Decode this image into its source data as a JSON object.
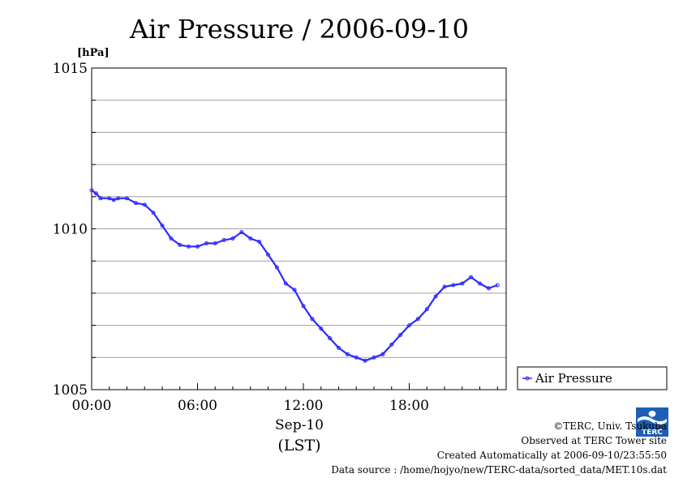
{
  "chart_data": {
    "type": "line",
    "title": "Air Pressure / 2006-09-10",
    "ylabel": "[hPa]",
    "ylim": [
      1005,
      1015
    ],
    "yticks": [
      1005,
      1010,
      1015
    ],
    "y_gridlines": [
      1006,
      1007,
      1008,
      1009,
      1010,
      1011,
      1012,
      1013,
      1014
    ],
    "xlim": [
      0,
      23
    ],
    "xticks": [
      0,
      6,
      12,
      18
    ],
    "xtick_labels": [
      "00:00",
      "06:00",
      "12:00",
      "18:00"
    ],
    "xlabel_date": "Sep-10",
    "xlabel_tz": "(LST)",
    "legend_placement": "right",
    "series": [
      {
        "name": "Air Pressure",
        "color": "#2b2bff",
        "x": [
          0,
          0.25,
          0.5,
          1,
          1.25,
          1.5,
          2,
          2.5,
          3,
          3.5,
          4,
          4.5,
          5,
          5.5,
          6,
          6.5,
          7,
          7.5,
          8,
          8.5,
          9,
          9.5,
          10,
          10.5,
          11,
          11.5,
          12,
          12.5,
          13,
          13.5,
          14,
          14.5,
          15,
          15.5,
          16,
          16.5,
          17,
          17.5,
          18,
          18.5,
          19,
          19.5,
          20,
          20.5,
          21,
          21.5,
          22,
          22.5,
          23
        ],
        "values": [
          1011.2,
          1011.1,
          1010.95,
          1010.95,
          1010.9,
          1010.95,
          1010.95,
          1010.8,
          1010.75,
          1010.5,
          1010.1,
          1009.7,
          1009.5,
          1009.45,
          1009.45,
          1009.55,
          1009.55,
          1009.65,
          1009.7,
          1009.9,
          1009.7,
          1009.6,
          1009.2,
          1008.8,
          1008.3,
          1008.1,
          1007.6,
          1007.2,
          1006.9,
          1006.6,
          1006.3,
          1006.1,
          1006.0,
          1005.9,
          1006.0,
          1006.1,
          1006.4,
          1006.7,
          1007.0,
          1007.2,
          1007.5,
          1007.9,
          1008.2,
          1008.25,
          1008.3,
          1008.5,
          1008.3,
          1008.15,
          1008.25
        ]
      }
    ]
  },
  "credits": {
    "copyright": "©TERC, Univ. Tsukuba",
    "observed": "Observed at TERC Tower site",
    "created": "Created Automatically at 2006-09-10/23:55:50",
    "source": "Data source : /home/hojyo/new/TERC-data/sorted_data/MET.10s.dat",
    "logo_text": "TERC"
  }
}
